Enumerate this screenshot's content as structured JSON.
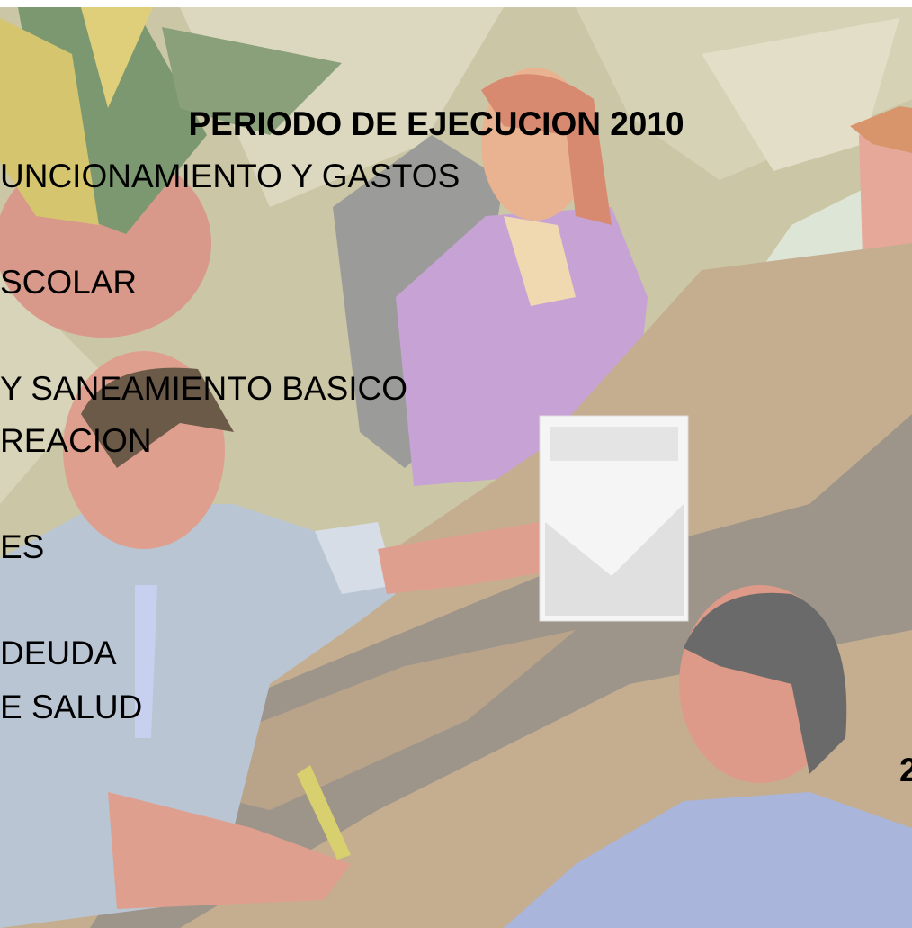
{
  "title": "PERIODO DE EJECUCION 2010",
  "lines": [
    "UNCIONAMIENTO Y GASTOS",
    "SCOLAR",
    "Y SANEAMIENTO BASICO",
    "REACION",
    "ES",
    "DEUDA",
    "E SALUD"
  ],
  "page_number": "2"
}
